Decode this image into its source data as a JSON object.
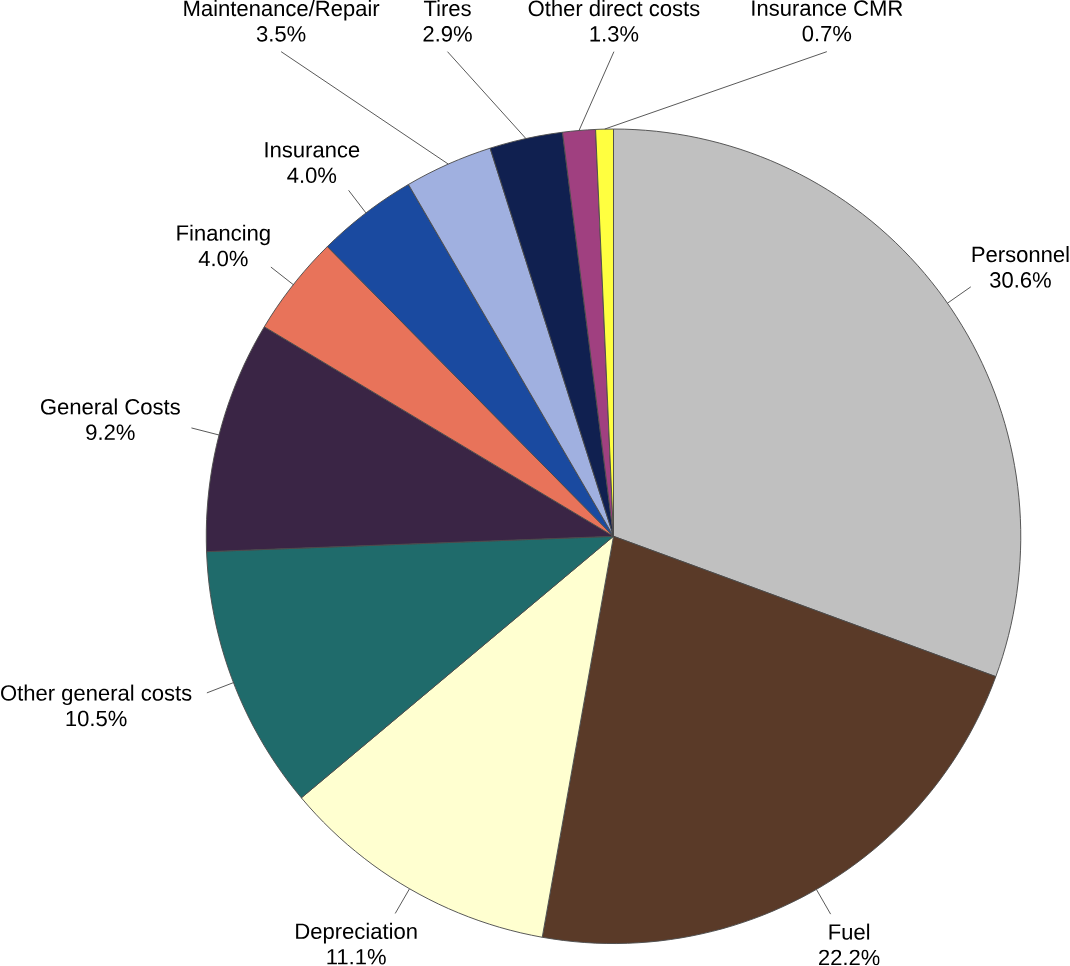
{
  "chart_data": {
    "type": "pie",
    "categories": [
      "Personnel",
      "Fuel",
      "Depreciation",
      "Other general costs",
      "General Costs",
      "Financing",
      "Insurance",
      "Maintenance/Repair",
      "Tires",
      "Other direct costs",
      "Insurance CMR"
    ],
    "values": [
      30.6,
      22.2,
      11.1,
      10.5,
      9.2,
      4.0,
      4.0,
      3.5,
      2.9,
      1.3,
      0.7
    ],
    "value_labels": [
      "30.6%",
      "22.2%",
      "11.1%",
      "10.5%",
      "9.2%",
      "4.0%",
      "4.0%",
      "3.5%",
      "2.9%",
      "1.3%",
      "0.7%"
    ],
    "colors": [
      "#c0c0c0",
      "#5a3a28",
      "#ffffd0",
      "#1f6b6b",
      "#3a2545",
      "#e8735a",
      "#1a4aa0",
      "#a0b0e0",
      "#102050",
      "#a04080",
      "#ffff40"
    ]
  }
}
